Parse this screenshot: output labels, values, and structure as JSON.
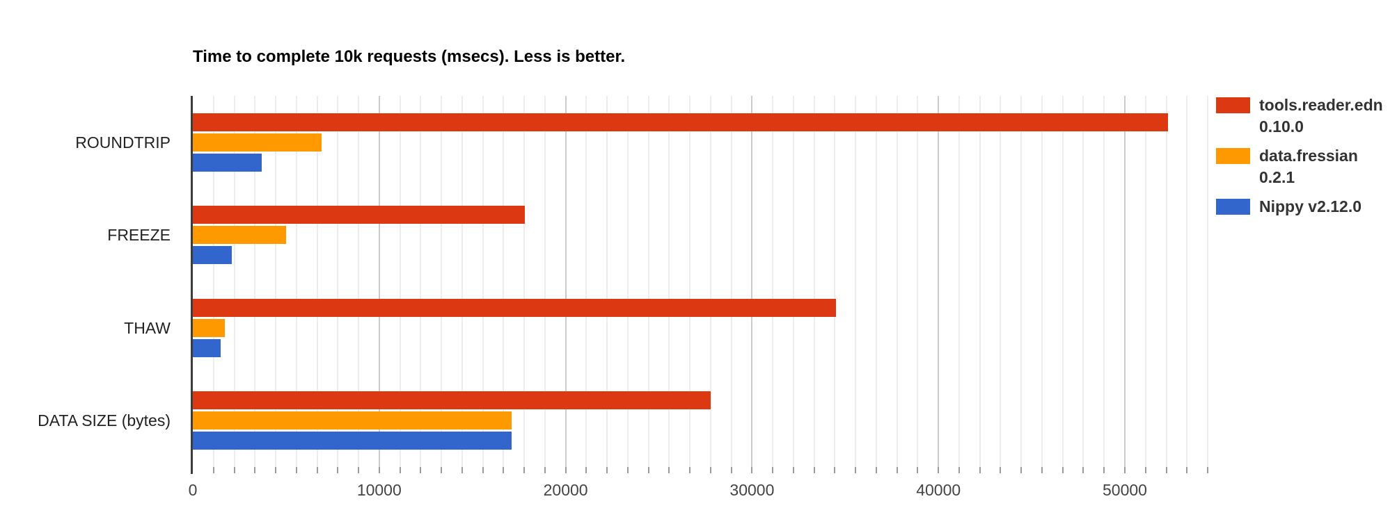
{
  "chart_data": {
    "type": "bar",
    "orientation": "horizontal",
    "title": "Time to complete 10k requests (msecs). Less is better.",
    "categories": [
      "ROUNDTRIP",
      "FREEZE",
      "THAW",
      "DATA SIZE (bytes)"
    ],
    "series": [
      {
        "name": "tools.reader.edn 0.10.0",
        "legend_lines": [
          "tools.reader.edn",
          "0.10.0"
        ],
        "color": "#dc3912",
        "values": [
          52300,
          17800,
          34500,
          27800
        ]
      },
      {
        "name": "data.fressian 0.2.1",
        "legend_lines": [
          "data.fressian",
          "0.2.1"
        ],
        "color": "#ff9900",
        "values": [
          6900,
          5000,
          1700,
          17100
        ]
      },
      {
        "name": "Nippy v2.12.0",
        "legend_lines": [
          "Nippy v2.12.0"
        ],
        "color": "#3366cc",
        "values": [
          3700,
          2100,
          1500,
          17100
        ]
      }
    ],
    "xlabel": "",
    "ylabel": "",
    "xticks": [
      0,
      10000,
      20000,
      30000,
      40000,
      50000
    ],
    "xlim": [
      0,
      54444
    ],
    "minor_gridlines_per_major": 9,
    "grid": true,
    "legend_position": "right",
    "background_color": "#ffffff",
    "axis_line_color": "#3c3c3c"
  }
}
